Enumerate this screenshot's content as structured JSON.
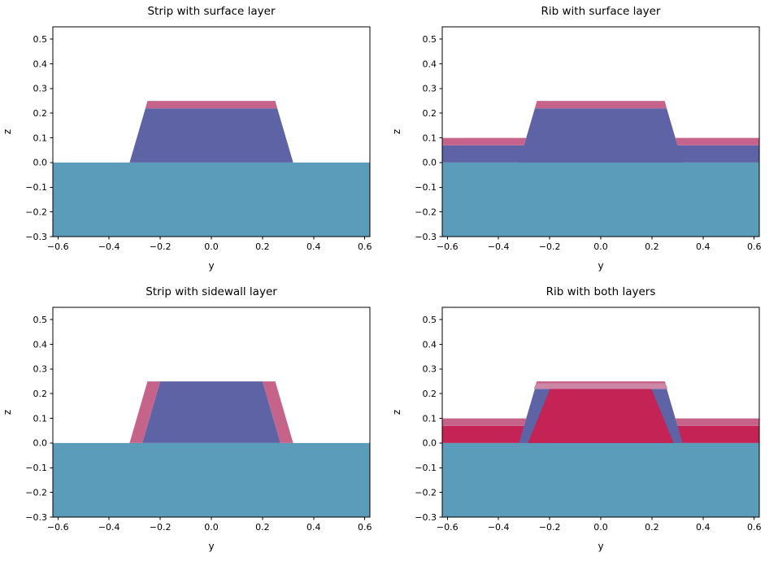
{
  "figure": {
    "background": "#ffffff"
  },
  "chart_data": {
    "type": "area",
    "description": "Four waveguide cross-section sketches (y-z plane) showing strip and rib waveguides on a substrate with conformal surface/sidewall layers",
    "xlabel": "y",
    "ylabel": "z",
    "xlim": [
      -0.62,
      0.62
    ],
    "ylim": [
      -0.3,
      0.55
    ],
    "xticks": {
      "values": [
        -0.6,
        -0.4,
        -0.2,
        0.0,
        0.2,
        0.4,
        0.6
      ],
      "labels": [
        "−0.6",
        "−0.4",
        "−0.2",
        "0.0",
        "0.2",
        "0.4",
        "0.6"
      ]
    },
    "yticks": {
      "values": [
        -0.3,
        -0.2,
        -0.1,
        0.0,
        0.1,
        0.2,
        0.3,
        0.4,
        0.5
      ],
      "labels": [
        "−0.3",
        "−0.2",
        "−0.1",
        "0.0",
        "0.1",
        "0.2",
        "0.3",
        "0.4",
        "0.5"
      ]
    },
    "colors": {
      "substrate": "#5b9cba",
      "core": "#5d63a5",
      "layer": "#c5638b",
      "layer_light": "#cd87a6",
      "overlap": "#c32355"
    },
    "geometry": {
      "substrate_top": 0.0,
      "substrate_bottom": -0.3,
      "slab_height": 0.07,
      "core_height": 0.22,
      "layer_thickness": 0.03,
      "core_base_halfwidth": 0.32,
      "core_top_halfwidth": 0.25,
      "total_height": 0.25
    },
    "subplots": [
      {
        "title": "Strip with surface layer",
        "polygons": [
          {
            "name": "substrate",
            "color": "substrate",
            "points": [
              [
                -0.62,
                -0.3
              ],
              [
                0.62,
                -0.3
              ],
              [
                0.62,
                0
              ],
              [
                -0.62,
                0
              ]
            ]
          },
          {
            "name": "core-strip",
            "color": "core",
            "points": [
              [
                -0.32,
                0
              ],
              [
                0.32,
                0
              ],
              [
                0.258,
                0.22
              ],
              [
                -0.258,
                0.22
              ]
            ]
          },
          {
            "name": "surface-layer-top",
            "color": "layer",
            "points": [
              [
                -0.258,
                0.22
              ],
              [
                0.258,
                0.22
              ],
              [
                0.25,
                0.25
              ],
              [
                -0.25,
                0.25
              ]
            ]
          }
        ]
      },
      {
        "title": "Rib with surface layer",
        "polygons": [
          {
            "name": "substrate",
            "color": "substrate",
            "points": [
              [
                -0.62,
                -0.3
              ],
              [
                0.62,
                -0.3
              ],
              [
                0.62,
                0
              ],
              [
                -0.62,
                0
              ]
            ]
          },
          {
            "name": "slab-core",
            "color": "core",
            "points": [
              [
                -0.62,
                0
              ],
              [
                0.62,
                0
              ],
              [
                0.62,
                0.07
              ],
              [
                -0.62,
                0.07
              ]
            ]
          },
          {
            "name": "rib-core",
            "color": "core",
            "points": [
              [
                -0.32,
                0
              ],
              [
                0.32,
                0
              ],
              [
                0.258,
                0.22
              ],
              [
                -0.258,
                0.22
              ]
            ]
          },
          {
            "name": "surface-layer-left",
            "color": "layer",
            "points": [
              [
                -0.62,
                0.07
              ],
              [
                -0.3,
                0.07
              ],
              [
                -0.292,
                0.1
              ],
              [
                -0.62,
                0.1
              ]
            ]
          },
          {
            "name": "surface-layer-right",
            "color": "layer",
            "points": [
              [
                0.3,
                0.07
              ],
              [
                0.62,
                0.07
              ],
              [
                0.62,
                0.1
              ],
              [
                0.292,
                0.1
              ]
            ]
          },
          {
            "name": "surface-layer-top",
            "color": "layer",
            "points": [
              [
                -0.258,
                0.22
              ],
              [
                0.258,
                0.22
              ],
              [
                0.25,
                0.25
              ],
              [
                -0.25,
                0.25
              ]
            ]
          }
        ]
      },
      {
        "title": "Strip with sidewall layer",
        "polygons": [
          {
            "name": "substrate",
            "color": "substrate",
            "points": [
              [
                -0.62,
                -0.3
              ],
              [
                0.62,
                -0.3
              ],
              [
                0.62,
                0
              ],
              [
                -0.62,
                0
              ]
            ]
          },
          {
            "name": "core-strip",
            "color": "core",
            "points": [
              [
                -0.27,
                0
              ],
              [
                0.27,
                0
              ],
              [
                0.2,
                0.25
              ],
              [
                -0.2,
                0.25
              ]
            ]
          },
          {
            "name": "sidewall-layer-left",
            "color": "layer",
            "points": [
              [
                -0.32,
                0
              ],
              [
                -0.27,
                0
              ],
              [
                -0.2,
                0.25
              ],
              [
                -0.25,
                0.25
              ]
            ]
          },
          {
            "name": "sidewall-layer-right",
            "color": "layer",
            "points": [
              [
                0.27,
                0
              ],
              [
                0.32,
                0
              ],
              [
                0.25,
                0.25
              ],
              [
                0.2,
                0.25
              ]
            ]
          }
        ]
      },
      {
        "title": "Rib with both layers",
        "polygons": [
          {
            "name": "substrate",
            "color": "substrate",
            "points": [
              [
                -0.62,
                -0.3
              ],
              [
                0.62,
                -0.3
              ],
              [
                0.62,
                0
              ],
              [
                -0.62,
                0
              ]
            ]
          },
          {
            "name": "slab-overlap",
            "color": "overlap",
            "points": [
              [
                -0.62,
                0
              ],
              [
                0.62,
                0
              ],
              [
                0.62,
                0.07
              ],
              [
                -0.62,
                0.07
              ]
            ]
          },
          {
            "name": "surface-layer-left",
            "color": "layer",
            "points": [
              [
                -0.62,
                0.07
              ],
              [
                -0.3,
                0.07
              ],
              [
                -0.292,
                0.1
              ],
              [
                -0.62,
                0.1
              ]
            ]
          },
          {
            "name": "surface-layer-right",
            "color": "layer",
            "points": [
              [
                0.3,
                0.07
              ],
              [
                0.62,
                0.07
              ],
              [
                0.62,
                0.1
              ],
              [
                0.292,
                0.1
              ]
            ]
          },
          {
            "name": "rib-core",
            "color": "core",
            "points": [
              [
                -0.32,
                0
              ],
              [
                0.32,
                0
              ],
              [
                0.258,
                0.22
              ],
              [
                -0.258,
                0.22
              ]
            ]
          },
          {
            "name": "rib-overlap",
            "color": "overlap",
            "points": [
              [
                -0.285,
                0
              ],
              [
                0.285,
                0
              ],
              [
                0.198,
                0.22
              ],
              [
                -0.198,
                0.22
              ]
            ]
          },
          {
            "name": "surface-layer-cap",
            "color": "layer_light",
            "points": [
              [
                -0.262,
                0.22
              ],
              [
                0.262,
                0.22
              ],
              [
                0.25,
                0.25
              ],
              [
                -0.25,
                0.25
              ]
            ]
          },
          {
            "name": "surface-layer-cap-edge",
            "color": "layer",
            "points": [
              [
                -0.253,
                0.242
              ],
              [
                0.253,
                0.242
              ],
              [
                0.25,
                0.25
              ],
              [
                -0.25,
                0.25
              ]
            ]
          }
        ]
      }
    ]
  }
}
